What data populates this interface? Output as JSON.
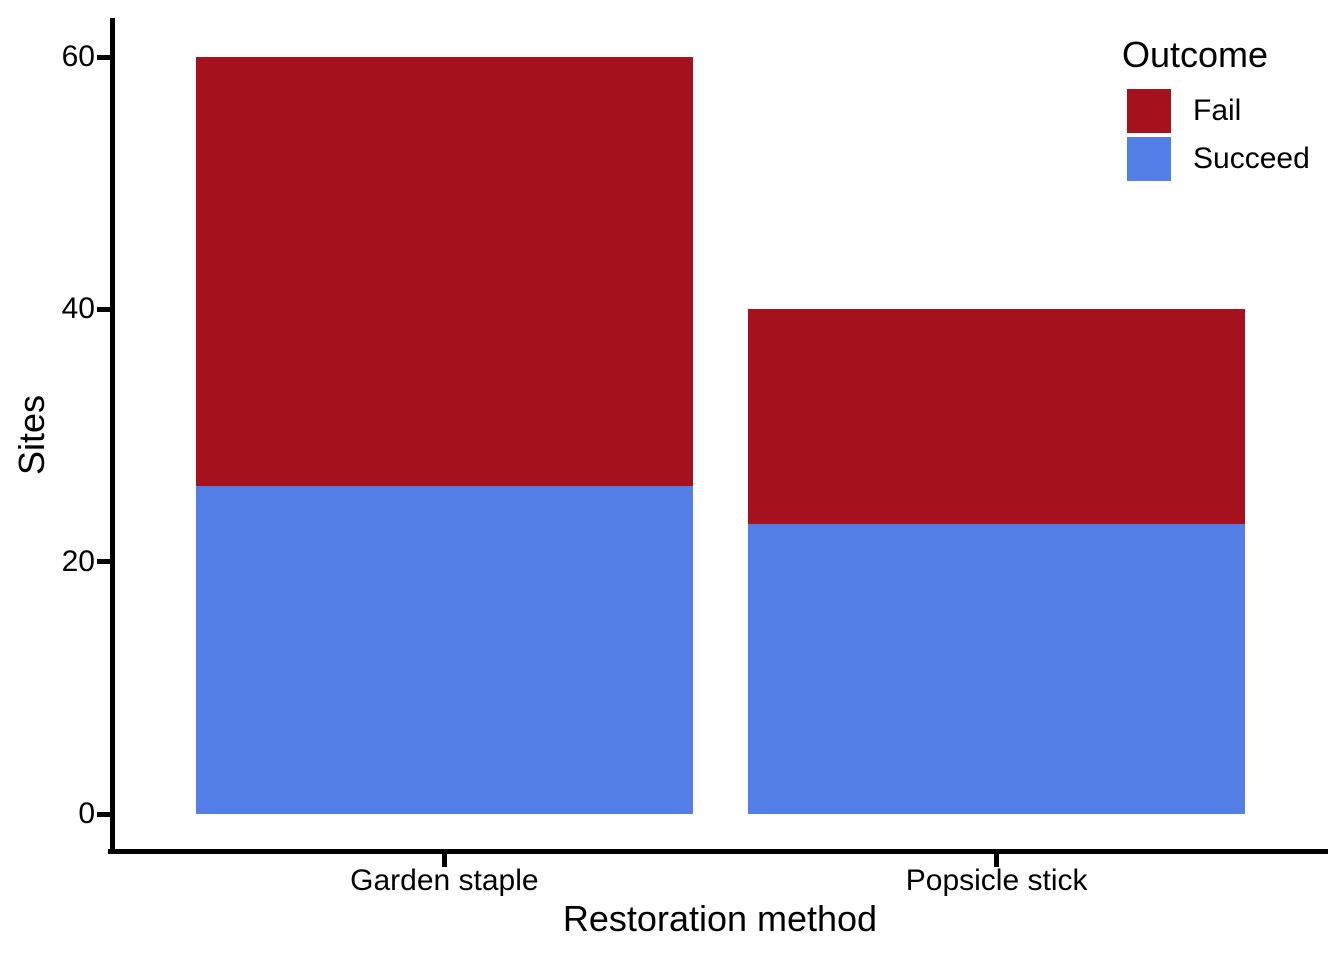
{
  "figure": {
    "background": "#FFFFFF",
    "text_color": "#000000"
  },
  "chart_data": {
    "type": "bar",
    "stacked": true,
    "title": "",
    "xlabel": "Restoration method",
    "ylabel": "Sites",
    "categories": [
      "Garden staple",
      "Popsicle stick"
    ],
    "series": [
      {
        "name": "Fail",
        "color": "#A5121D",
        "values": [
          34,
          17
        ]
      },
      {
        "name": "Succeed",
        "color": "#527EE6",
        "values": [
          26,
          23
        ]
      }
    ],
    "stack_totals": [
      60,
      40
    ],
    "stack_order": "first-series-on-top",
    "ylim": [
      0,
      60
    ],
    "yticks": [
      0,
      20,
      40,
      60
    ],
    "grid": false,
    "legend_title": "Outcome",
    "legend_position": "top-right-inside"
  }
}
